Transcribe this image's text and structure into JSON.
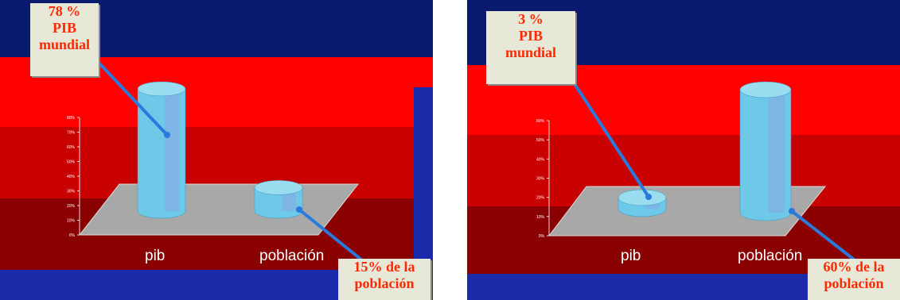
{
  "colors": {
    "navy": "#0a1a6e",
    "red_bright": "#ff0000",
    "red_dark": "#8a0000",
    "cylinder": "#6ec8e8",
    "floor": "#a8a8a8",
    "callout_text": "#ff2a00",
    "callout_bg": "#e8e8d8",
    "arrow": "#2a7adc"
  },
  "chart_data": [
    {
      "type": "bar",
      "categories": [
        "pib",
        "población"
      ],
      "values": [
        78,
        15
      ],
      "ylim": [
        0,
        80
      ],
      "y_ticks": [
        "0%",
        "10%",
        "20%",
        "30%",
        "40%",
        "50%",
        "60%",
        "70%",
        "80%"
      ],
      "grid": false,
      "legend": "none",
      "annotations": [
        {
          "lines": [
            "78 %",
            "PIB",
            "mundial"
          ],
          "points_to": "pib"
        },
        {
          "lines": [
            "15% de la",
            "población"
          ],
          "points_to": "población"
        }
      ]
    },
    {
      "type": "bar",
      "categories": [
        "pib",
        "población"
      ],
      "values": [
        3,
        60
      ],
      "ylim": [
        0,
        60
      ],
      "y_ticks": [
        "0%",
        "10%",
        "20%",
        "30%",
        "40%",
        "50%",
        "60%"
      ],
      "grid": false,
      "legend": "none",
      "annotations": [
        {
          "lines": [
            "3 %",
            "PIB",
            "mundial"
          ],
          "points_to": "pib"
        },
        {
          "lines": [
            "60% de la",
            "población"
          ],
          "points_to": "población"
        }
      ]
    }
  ]
}
